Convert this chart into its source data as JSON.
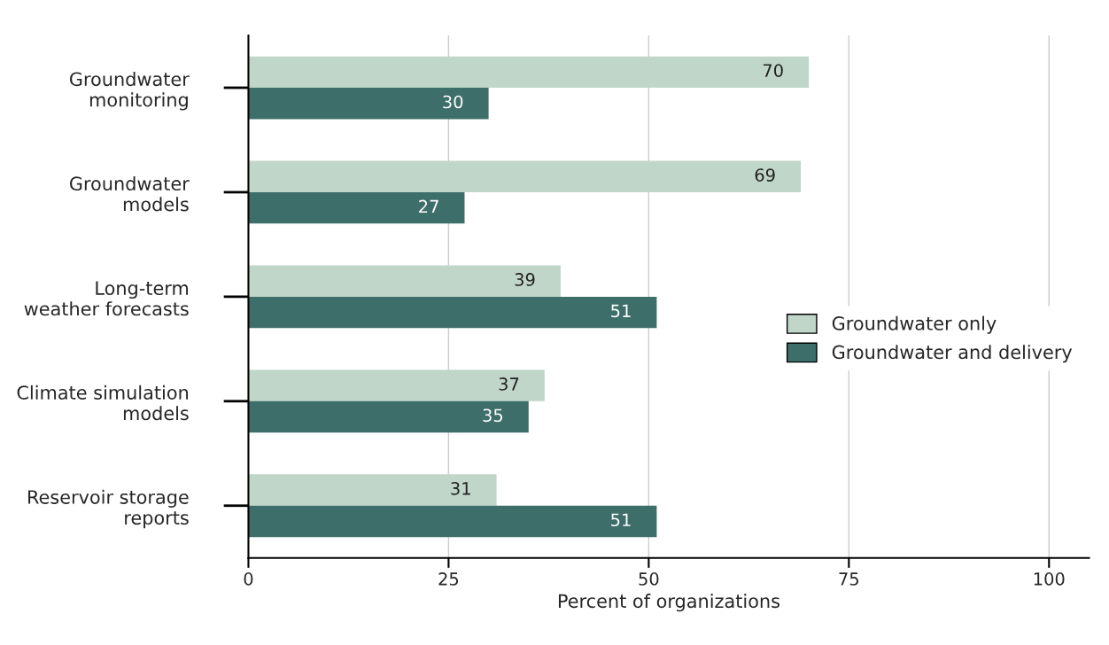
{
  "chart_data": {
    "type": "bar",
    "orientation": "horizontal",
    "xlabel": "Percent of organizations",
    "categories": [
      "Groundwater\nmonitoring",
      "Groundwater\nmodels",
      "Long-term\nweather forecasts",
      "Climate simulation\nmodels",
      "Reservoir storage\nreports"
    ],
    "series": [
      {
        "name": "Groundwater only",
        "color": "#c0d6c8",
        "values": [
          70,
          69,
          39,
          37,
          31
        ]
      },
      {
        "name": "Groundwater and delivery",
        "color": "#3d6e6a",
        "values": [
          30,
          27,
          51,
          35,
          51
        ]
      }
    ],
    "xlim": [
      0,
      105
    ],
    "xticks": [
      0,
      25,
      50,
      75,
      100
    ],
    "grid": "x",
    "legend": "right",
    "data_labels": true
  }
}
